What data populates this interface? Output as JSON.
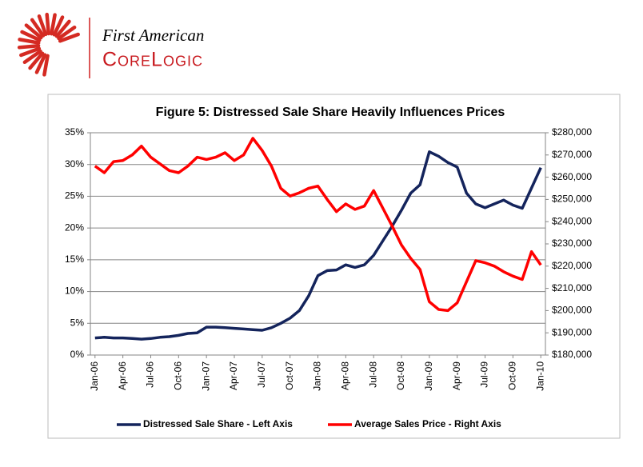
{
  "logo": {
    "line1": "First American",
    "line2": "CoreLogic"
  },
  "chart_data": {
    "type": "line",
    "title": "Figure 5: Distressed Sale Share  Heavily Influences Prices",
    "categories": [
      "Jan-06",
      null,
      null,
      "Apr-06",
      null,
      null,
      "Jul-06",
      null,
      null,
      "Oct-06",
      null,
      null,
      "Jan-07",
      null,
      null,
      "Apr-07",
      null,
      null,
      "Jul-07",
      null,
      null,
      "Oct-07",
      null,
      null,
      "Jan-08",
      null,
      null,
      "Apr-08",
      null,
      null,
      "Jul-08",
      null,
      null,
      "Oct-08",
      null,
      null,
      "Jan-09",
      null,
      null,
      "Apr-09",
      null,
      null,
      "Jul-09",
      null,
      null,
      "Oct-09",
      null,
      null,
      "Jan-10"
    ],
    "series": [
      {
        "name": "Distressed Sale Share - Left Axis",
        "color": "#14245c",
        "axis": "y",
        "values": [
          2.7,
          2.8,
          2.7,
          2.7,
          2.6,
          2.5,
          2.6,
          2.8,
          2.9,
          3.1,
          3.4,
          3.5,
          4.4,
          4.4,
          4.3,
          4.2,
          4.1,
          4.0,
          3.9,
          4.3,
          5.0,
          5.8,
          7.0,
          9.3,
          12.5,
          13.3,
          13.4,
          14.2,
          13.8,
          14.2,
          15.7,
          18.0,
          20.3,
          22.8,
          25.5,
          26.8,
          32.0,
          31.3,
          30.3,
          29.6,
          25.5,
          23.8,
          23.2,
          23.8,
          24.4,
          23.6,
          23.1,
          26.3,
          29.5
        ]
      },
      {
        "name": "Average Sales Price - Right Axis",
        "color": "#ff0000",
        "axis": "y2",
        "values": [
          265000,
          262000,
          267000,
          267500,
          270000,
          274000,
          269000,
          266000,
          263000,
          262000,
          265000,
          269000,
          268000,
          269000,
          271000,
          267500,
          270000,
          277500,
          272000,
          265000,
          255000,
          251500,
          253000,
          255000,
          256000,
          250000,
          244500,
          248000,
          245500,
          247000,
          254000,
          246000,
          238000,
          229500,
          223500,
          218500,
          204000,
          200500,
          200000,
          203500,
          213000,
          222500,
          221500,
          220000,
          217500,
          215500,
          214000,
          226500,
          220500
        ]
      }
    ],
    "ylim": [
      0,
      35
    ],
    "yticks": [
      {
        "value": 0,
        "label": "0%"
      },
      {
        "value": 5,
        "label": "5%"
      },
      {
        "value": 10,
        "label": "10%"
      },
      {
        "value": 15,
        "label": "15%"
      },
      {
        "value": 20,
        "label": "20%"
      },
      {
        "value": 25,
        "label": "25%"
      },
      {
        "value": 30,
        "label": "30%"
      },
      {
        "value": 35,
        "label": "35%"
      }
    ],
    "y2lim": [
      180000,
      280000
    ],
    "y2ticks": [
      {
        "value": 180000,
        "label": "$180,000"
      },
      {
        "value": 190000,
        "label": "$190,000"
      },
      {
        "value": 200000,
        "label": "$200,000"
      },
      {
        "value": 210000,
        "label": "$210,000"
      },
      {
        "value": 220000,
        "label": "$220,000"
      },
      {
        "value": 230000,
        "label": "$230,000"
      },
      {
        "value": 240000,
        "label": "$240,000"
      },
      {
        "value": 250000,
        "label": "$250,000"
      },
      {
        "value": 260000,
        "label": "$260,000"
      },
      {
        "value": 270000,
        "label": "$270,000"
      },
      {
        "value": 280000,
        "label": "$280,000"
      }
    ],
    "grid": true,
    "legend": "bottom"
  }
}
